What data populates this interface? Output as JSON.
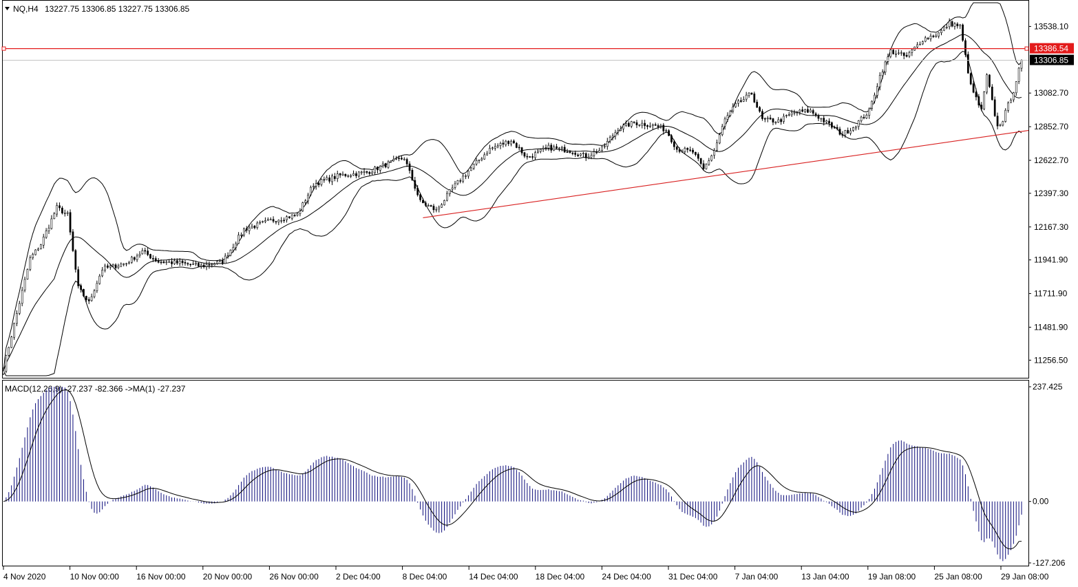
{
  "header": {
    "symbol": "NQ,H4",
    "ohlc": "13227.75 13306.85 13227.75 13306.85"
  },
  "price_scale": [
    "13538.10",
    "13082.70",
    "12852.70",
    "12622.70",
    "12397.30",
    "12167.30",
    "11941.90",
    "11711.90",
    "11481.90",
    "11256.50"
  ],
  "level_labels": {
    "resistance": "13386.54",
    "current": "13306.85"
  },
  "macd": {
    "label": "MACD(12,26,9) -27.237 -82.366  ->MA(1) -27.237",
    "scale": [
      "237.425",
      "0.00",
      "-127.206"
    ]
  },
  "time_labels": [
    "4 Nov 2020",
    "10 Nov 00:00",
    "16 Nov 00:00",
    "20 Nov 00:00",
    "26 Nov 00:00",
    "2 Dec 04:00",
    "8 Dec 04:00",
    "14 Dec 04:00",
    "18 Dec 04:00",
    "24 Dec 04:00",
    "31 Dec 04:00",
    "7 Jan 04:00",
    "13 Jan 04:00",
    "19 Jan 08:00",
    "25 Jan 08:00",
    "29 Jan 08:00"
  ],
  "colors": {
    "background": "#ffffff",
    "candles": "#000000",
    "bands": "#000000",
    "trendline": "#d81e1e",
    "resistance_line": "#e31b1b",
    "current_badge": "#000000",
    "resistance_badge": "#e31b1b",
    "macd_hist": "#0a0a7a",
    "macd_signal": "#000000",
    "current_line": "#c0c0c0"
  },
  "chart_data": [
    {
      "type": "candlestick",
      "title": "NQ,H4",
      "x_labels": [
        "4 Nov 2020",
        "10 Nov 00:00",
        "16 Nov 00:00",
        "20 Nov 00:00",
        "26 Nov 00:00",
        "2 Dec 04:00",
        "8 Dec 04:00",
        "14 Dec 04:00",
        "18 Dec 04:00",
        "24 Dec 04:00",
        "31 Dec 04:00",
        "7 Jan 04:00",
        "13 Jan 04:00",
        "19 Jan 08:00",
        "25 Jan 08:00",
        "29 Jan 08:00"
      ],
      "ylim": [
        11150,
        13700
      ],
      "indicators": [
        "Bollinger Bands"
      ],
      "close_anchors": [
        {
          "bar": 0,
          "close": 11200
        },
        {
          "bar": 4,
          "close": 11500
        },
        {
          "bar": 10,
          "close": 11950
        },
        {
          "bar": 14,
          "close": 12050
        },
        {
          "bar": 20,
          "close": 12300
        },
        {
          "bar": 24,
          "close": 12250
        },
        {
          "bar": 28,
          "close": 11750
        },
        {
          "bar": 32,
          "close": 11650
        },
        {
          "bar": 37,
          "close": 11880
        },
        {
          "bar": 46,
          "close": 11920
        },
        {
          "bar": 52,
          "close": 12000
        },
        {
          "bar": 58,
          "close": 11930
        },
        {
          "bar": 66,
          "close": 11920
        },
        {
          "bar": 74,
          "close": 11900
        },
        {
          "bar": 82,
          "close": 11930
        },
        {
          "bar": 90,
          "close": 12150
        },
        {
          "bar": 100,
          "close": 12210
        },
        {
          "bar": 110,
          "close": 12250
        },
        {
          "bar": 116,
          "close": 12460
        },
        {
          "bar": 126,
          "close": 12520
        },
        {
          "bar": 136,
          "close": 12540
        },
        {
          "bar": 144,
          "close": 12600
        },
        {
          "bar": 150,
          "close": 12640
        },
        {
          "bar": 156,
          "close": 12340
        },
        {
          "bar": 162,
          "close": 12280
        },
        {
          "bar": 168,
          "close": 12430
        },
        {
          "bar": 174,
          "close": 12550
        },
        {
          "bar": 182,
          "close": 12700
        },
        {
          "bar": 190,
          "close": 12760
        },
        {
          "bar": 196,
          "close": 12640
        },
        {
          "bar": 204,
          "close": 12710
        },
        {
          "bar": 212,
          "close": 12690
        },
        {
          "bar": 218,
          "close": 12650
        },
        {
          "bar": 224,
          "close": 12700
        },
        {
          "bar": 230,
          "close": 12840
        },
        {
          "bar": 236,
          "close": 12880
        },
        {
          "bar": 244,
          "close": 12860
        },
        {
          "bar": 248,
          "close": 12830
        },
        {
          "bar": 252,
          "close": 12700
        },
        {
          "bar": 258,
          "close": 12680
        },
        {
          "bar": 262,
          "close": 12560
        },
        {
          "bar": 266,
          "close": 12690
        },
        {
          "bar": 270,
          "close": 12900
        },
        {
          "bar": 274,
          "close": 13000
        },
        {
          "bar": 280,
          "close": 13080
        },
        {
          "bar": 284,
          "close": 12900
        },
        {
          "bar": 290,
          "close": 12890
        },
        {
          "bar": 296,
          "close": 12950
        },
        {
          "bar": 302,
          "close": 12960
        },
        {
          "bar": 308,
          "close": 12880
        },
        {
          "bar": 314,
          "close": 12800
        },
        {
          "bar": 318,
          "close": 12850
        },
        {
          "bar": 324,
          "close": 12960
        },
        {
          "bar": 328,
          "close": 13200
        },
        {
          "bar": 332,
          "close": 13370
        },
        {
          "bar": 338,
          "close": 13330
        },
        {
          "bar": 344,
          "close": 13450
        },
        {
          "bar": 350,
          "close": 13490
        },
        {
          "bar": 354,
          "close": 13560
        },
        {
          "bar": 358,
          "close": 13540
        },
        {
          "bar": 362,
          "close": 13130
        },
        {
          "bar": 366,
          "close": 12960
        },
        {
          "bar": 368,
          "close": 13200
        },
        {
          "bar": 372,
          "close": 12850
        },
        {
          "bar": 374,
          "close": 12900
        },
        {
          "bar": 378,
          "close": 13100
        },
        {
          "bar": 381,
          "close": 13306.85
        }
      ],
      "levels": {
        "resistance": 13386.54,
        "current": 13306.85
      },
      "trendlines": [
        {
          "name": "support",
          "from": {
            "bar": 157,
            "price": 12230
          },
          "to": {
            "bar": 381,
            "price": 12820
          }
        }
      ]
    },
    {
      "type": "bar",
      "title": "MACD(12,26,9) -27.237 -82.366  ->MA(1) -27.237",
      "ylim": [
        -127.206,
        237.425
      ],
      "last_values": {
        "macd": -27.237,
        "signal": -82.366
      },
      "description": "MACD histogram with signal line, derived from the price series"
    }
  ]
}
